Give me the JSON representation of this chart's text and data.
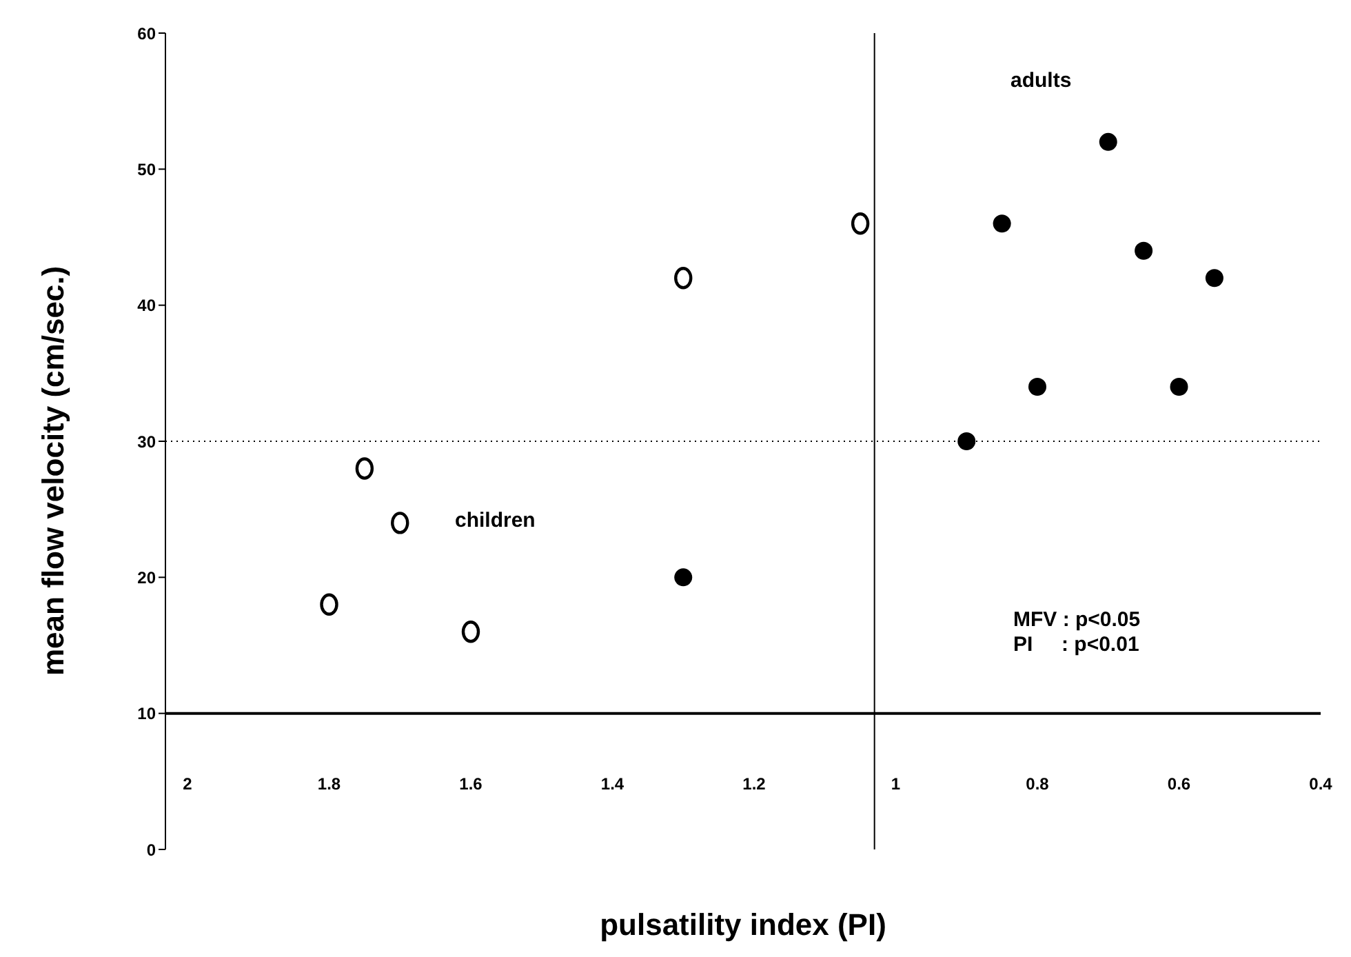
{
  "chart_data": {
    "type": "scatter",
    "xlabel": "pulsatility index (PI)",
    "ylabel": "mean flow velocity (cm/sec.)",
    "xlim": [
      2,
      0.4
    ],
    "xticks": [
      2,
      1.8,
      1.6,
      1.4,
      1.2,
      1,
      0.8,
      0.6,
      0.4
    ],
    "ylim": [
      0,
      60
    ],
    "yticks": [
      0,
      10,
      20,
      30,
      40,
      50,
      60
    ],
    "grid": false,
    "legend": false,
    "marker": "circle",
    "series": [
      {
        "color": "#000000",
        "x": [
          1.05,
          1.3,
          1.75,
          1.7,
          1.8,
          1.6
        ],
        "values": [
          46,
          42,
          28,
          24,
          18,
          16
        ]
      },
      {
        "color": "#000000",
        "x": [
          0.7,
          0.85,
          0.65,
          0.55,
          0.8,
          0.6,
          0.9,
          1.3
        ],
        "values": [
          52,
          46,
          44,
          42,
          34,
          34,
          30,
          20
        ]
      }
    ],
    "ref_lines": [
      {
        "axis": "y",
        "value": 10,
        "line_style": "solid",
        "color": "#000000"
      },
      {
        "axis": "y",
        "value": 30,
        "line_style": "dotted",
        "color": "#000000"
      },
      {
        "axis": "x",
        "value": 1.03,
        "line_style": "solid",
        "color": "#000000"
      }
    ],
    "annotations": [
      "adults",
      "children",
      "MFV : p<0.05",
      "PI     : p<0.01"
    ]
  }
}
